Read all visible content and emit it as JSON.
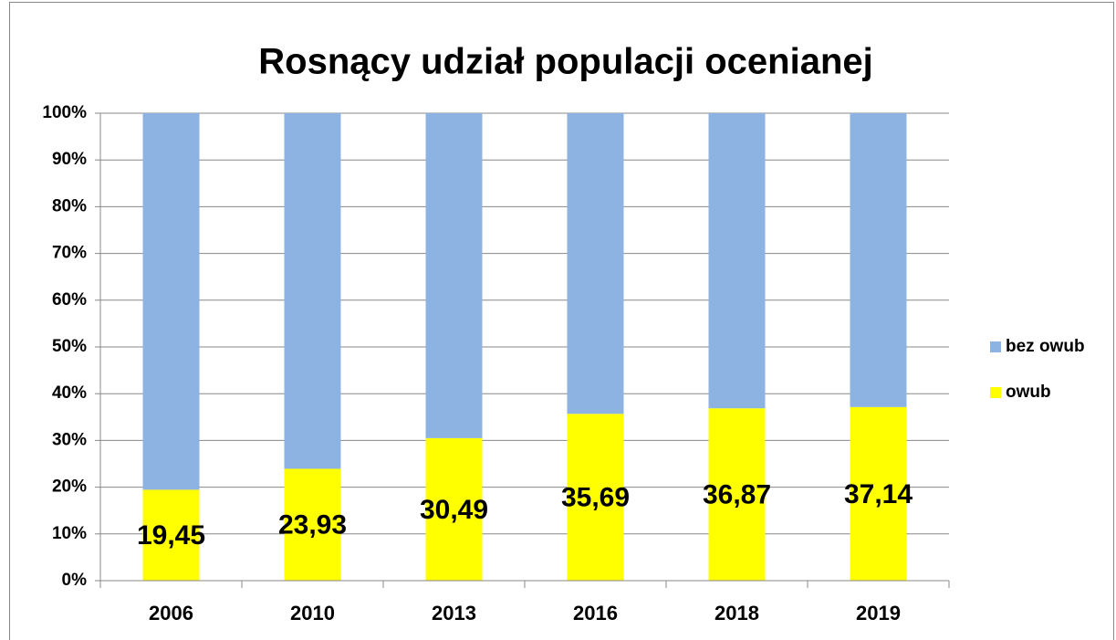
{
  "chart_data": {
    "type": "stacked_bar",
    "title": "Rosnący udział populacji ocenianej",
    "categories": [
      "2006",
      "2010",
      "2013",
      "2016",
      "2018",
      "2019"
    ],
    "series": [
      {
        "name": "owub",
        "color": "#ffff00",
        "values": [
          19.45,
          23.93,
          30.49,
          35.69,
          36.87,
          37.14
        ],
        "value_labels": [
          "19,45",
          "23,93",
          "30,49",
          "35,69",
          "36,87",
          "37,14"
        ]
      },
      {
        "name": "bez owub",
        "color": "#8db3e2",
        "values": [
          80.55,
          76.07,
          69.51,
          64.31,
          63.13,
          62.86
        ]
      }
    ],
    "ylim": [
      0,
      100
    ],
    "yticks": [
      {
        "value": 0,
        "label": "0%"
      },
      {
        "value": 10,
        "label": "10%"
      },
      {
        "value": 20,
        "label": "20%"
      },
      {
        "value": 30,
        "label": "30%"
      },
      {
        "value": 40,
        "label": "40%"
      },
      {
        "value": 50,
        "label": "50%"
      },
      {
        "value": 60,
        "label": "60%"
      },
      {
        "value": 70,
        "label": "70%"
      },
      {
        "value": 80,
        "label": "80%"
      },
      {
        "value": 90,
        "label": "90%"
      },
      {
        "value": 100,
        "label": "100%"
      }
    ],
    "grid": true,
    "legend": "right"
  }
}
